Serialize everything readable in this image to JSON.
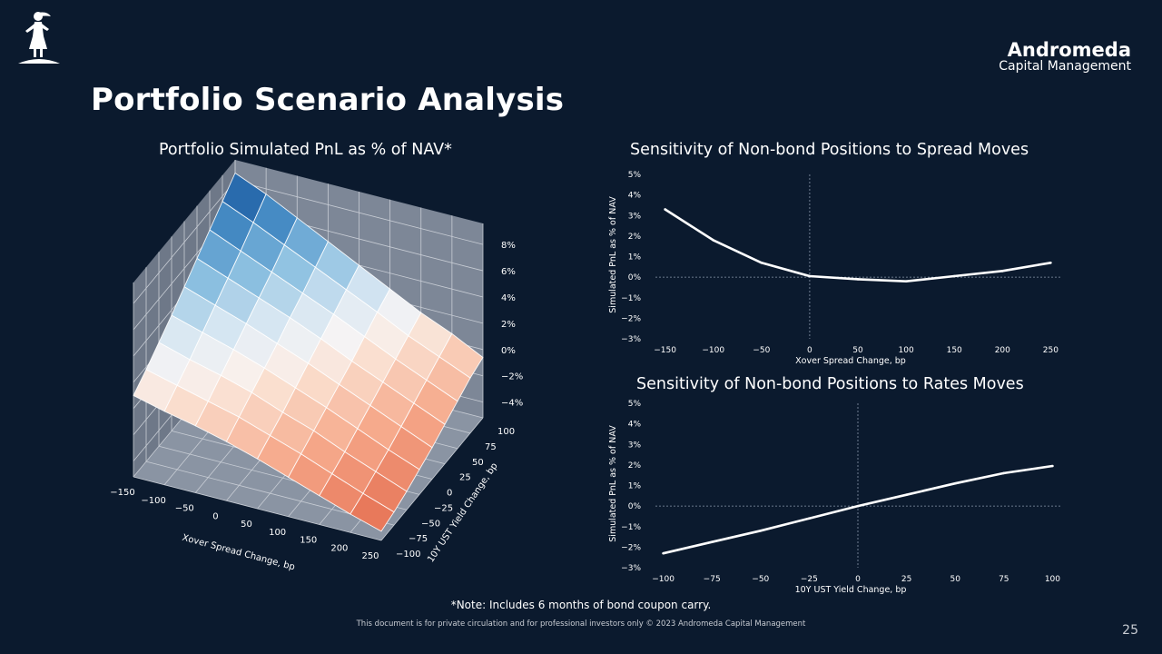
{
  "brand": {
    "name": "Andromeda",
    "subtitle": "Capital Management"
  },
  "page_title": "Portfolio Scenario Analysis",
  "footer": {
    "note": "*Note: Includes 6 months of bond coupon carry.",
    "disclaimer": "This document is for private circulation and for professional investors only © 2023 Andromeda Capital Management",
    "page_number": "25"
  },
  "chart_data": [
    {
      "type": "surface",
      "title": "Portfolio Simulated PnL as % of NAV*",
      "xlabel": "Xover Spread Change, bp",
      "ylabel": "10Y UST Yield Change, bp",
      "x": [
        -150,
        -100,
        -50,
        0,
        50,
        100,
        150,
        200,
        250
      ],
      "y": [
        -100,
        -75,
        -50,
        -25,
        0,
        25,
        50,
        75,
        100
      ],
      "x_ticks": [
        "−150",
        "−100",
        "−50",
        "0",
        "50",
        "100",
        "150",
        "200",
        "250"
      ],
      "y_ticks": [
        "−100",
        "−75",
        "−50",
        "−25",
        "0",
        "25",
        "50",
        "75",
        "100"
      ],
      "z_ticks": [
        "8%",
        "6%",
        "4%",
        "2%",
        "0%",
        "−2%",
        "−4%"
      ],
      "z_values": [
        [
          8.6,
          7.6,
          6.4,
          5.2,
          4.0,
          2.8,
          1.6,
          0.6,
          -0.6
        ],
        [
          7.6,
          6.6,
          5.5,
          4.4,
          3.3,
          2.2,
          1.0,
          0.0,
          -1.0
        ],
        [
          6.6,
          5.6,
          4.6,
          3.6,
          2.6,
          1.5,
          0.4,
          -0.6,
          -1.6
        ],
        [
          5.6,
          4.7,
          3.8,
          2.9,
          1.9,
          0.8,
          -0.2,
          -1.2,
          -2.2
        ],
        [
          4.6,
          3.8,
          3.0,
          2.1,
          1.2,
          0.2,
          -0.8,
          -1.8,
          -2.8
        ],
        [
          3.6,
          2.9,
          2.2,
          1.4,
          0.5,
          -0.4,
          -1.4,
          -2.4,
          -3.3
        ],
        [
          2.7,
          2.0,
          1.4,
          0.7,
          -0.2,
          -1.0,
          -2.0,
          -2.9,
          -3.8
        ],
        [
          1.8,
          1.2,
          0.6,
          0.0,
          -0.8,
          -1.6,
          -2.5,
          -3.4,
          -4.2
        ],
        [
          1.0,
          0.4,
          -0.1,
          -0.7,
          -1.4,
          -2.2,
          -3.0,
          -3.8,
          -4.5
        ]
      ],
      "zlim": [
        -4,
        8
      ],
      "colormap": "RdBu_r"
    },
    {
      "type": "line",
      "title": "Sensitivity of Non-bond Positions to Spread Moves",
      "xlabel": "Xover Spread Change, bp",
      "ylabel": "Simulated PnL as % of NAV",
      "x": [
        -150,
        -100,
        -50,
        0,
        50,
        100,
        150,
        200,
        250
      ],
      "y": [
        3.3,
        1.8,
        0.7,
        0.05,
        -0.1,
        -0.2,
        0.05,
        0.3,
        0.7
      ],
      "x_ticks": [
        "−150",
        "−100",
        "−50",
        "0",
        "50",
        "100",
        "150",
        "200",
        "250"
      ],
      "y_ticks": [
        "5%",
        "4%",
        "3%",
        "2%",
        "1%",
        "0%",
        "−1%",
        "−2%",
        "−3%"
      ],
      "xlim": [
        -160,
        260
      ],
      "ylim": [
        -3,
        5
      ],
      "grid": false
    },
    {
      "type": "line",
      "title": "Sensitivity of Non-bond Positions to Rates Moves",
      "xlabel": "10Y UST Yield Change, bp",
      "ylabel": "Simulated PnL as % of NAV",
      "x": [
        -100,
        -75,
        -50,
        -25,
        0,
        25,
        50,
        75,
        100
      ],
      "y": [
        -2.3,
        -1.75,
        -1.2,
        -0.6,
        0.0,
        0.55,
        1.1,
        1.6,
        1.95
      ],
      "x_ticks": [
        "−100",
        "−75",
        "−50",
        "−25",
        "0",
        "25",
        "50",
        "75",
        "100"
      ],
      "y_ticks": [
        "5%",
        "4%",
        "3%",
        "2%",
        "1%",
        "0%",
        "−1%",
        "−2%",
        "−3%"
      ],
      "xlim": [
        -104,
        104
      ],
      "ylim": [
        -3,
        5
      ],
      "grid": false
    }
  ]
}
